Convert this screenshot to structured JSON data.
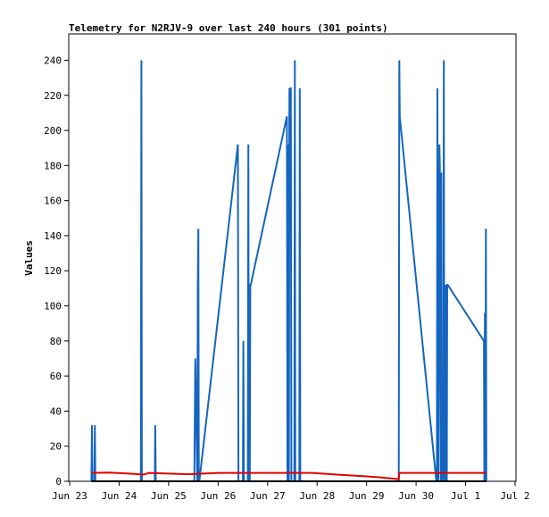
{
  "chart_data": {
    "type": "line",
    "title": "Telemetry for N2RJV-9 over last 240 hours (301 points)",
    "xlabel": "",
    "ylabel": "Values",
    "x_ticks": [
      "Jun 23",
      "Jun 24",
      "Jun 25",
      "Jun 26",
      "Jun 27",
      "Jun 28",
      "Jun 29",
      "Jun 30",
      "Jul 1",
      "Jul 2"
    ],
    "y_ticks": [
      0,
      20,
      40,
      60,
      80,
      100,
      120,
      140,
      160,
      180,
      200,
      220,
      240
    ],
    "xlim": [
      0,
      9
    ],
    "ylim": [
      0,
      255
    ],
    "grid": false,
    "legend": "none",
    "colors": {
      "blue": "#1565c0",
      "red": "#e00000",
      "black": "#000000"
    },
    "series": [
      {
        "color": "#1565c0",
        "x": [
          0.44,
          0.45,
          0.46,
          0.5,
          0.51,
          0.52,
          1.44,
          1.45,
          1.46,
          1.72,
          1.73,
          1.74,
          2.52,
          2.53,
          2.54,
          2.58,
          2.59,
          2.6,
          2.61,
          2.62,
          3.4,
          3.41,
          3.5,
          3.51,
          3.52,
          3.6,
          3.61,
          3.62,
          3.64,
          3.65,
          3.66,
          4.39,
          4.4,
          4.41,
          4.42,
          4.43,
          4.44,
          4.45,
          4.46,
          4.47,
          4.48,
          4.54,
          4.55,
          4.56,
          4.64,
          4.65,
          4.66,
          6.65,
          6.66,
          6.67,
          7.41,
          7.42,
          7.43,
          7.44,
          7.45,
          7.46,
          7.47,
          7.48,
          7.5,
          7.51,
          7.52,
          7.55,
          7.56,
          7.57,
          7.58,
          7.6,
          7.61,
          7.62,
          7.63,
          7.64,
          8.37,
          8.38,
          8.39,
          8.4,
          8.41,
          8.42
        ],
        "y": [
          0,
          32,
          0,
          0,
          32,
          0,
          0,
          240,
          0,
          0,
          32,
          0,
          0,
          40,
          70,
          0,
          112,
          144,
          0,
          0,
          192,
          0,
          0,
          80,
          0,
          0,
          192,
          0,
          0,
          112,
          112,
          208,
          0,
          0,
          192,
          0,
          224,
          168,
          224,
          224,
          0,
          0,
          240,
          0,
          0,
          224,
          0,
          0,
          240,
          208,
          0,
          0,
          224,
          0,
          0,
          84,
          192,
          180,
          0,
          176,
          0,
          0,
          240,
          0,
          112,
          0,
          112,
          0,
          112,
          112,
          80,
          0,
          96,
          0,
          144,
          0
        ]
      },
      {
        "color": "#e00000",
        "x": [
          0.44,
          0.8,
          1.2,
          1.5,
          1.6,
          2.0,
          2.4,
          3.0,
          3.6,
          4.0,
          4.6,
          4.9,
          5.4,
          6.0,
          6.3,
          6.65,
          6.66,
          7.2,
          8.0,
          8.42
        ],
        "y": [
          4.8,
          5,
          4.4,
          3.8,
          4.8,
          4.4,
          4.0,
          4.8,
          4.8,
          4.8,
          4.8,
          4.8,
          3.8,
          2.8,
          2.2,
          1.2,
          4.8,
          4.8,
          4.8,
          4.8
        ]
      },
      {
        "color": "#000000",
        "x": [
          0.44,
          8.42
        ],
        "y": [
          0,
          0
        ]
      }
    ]
  }
}
